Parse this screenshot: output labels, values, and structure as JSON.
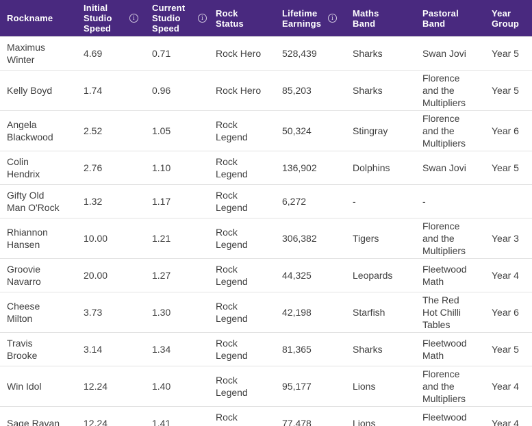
{
  "theme": {
    "header_bg": "#49297F",
    "header_text": "#FFFFFF",
    "row_text": "#3E3E3E",
    "divider": "#E2E2E2"
  },
  "table": {
    "columns": [
      {
        "key": "rockname",
        "label": "Rockname",
        "info": false
      },
      {
        "key": "initial-studio-speed",
        "label": "Initial Studio Speed",
        "info": true
      },
      {
        "key": "current-studio-speed",
        "label": "Current Studio Speed",
        "info": true
      },
      {
        "key": "rock-status",
        "label": "Rock Status",
        "info": false
      },
      {
        "key": "lifetime-earnings",
        "label": "Lifetime Earnings",
        "info": true
      },
      {
        "key": "maths-band",
        "label": "Maths Band",
        "info": false
      },
      {
        "key": "pastoral-band",
        "label": "Pastoral Band",
        "info": false
      },
      {
        "key": "year-group",
        "label": "Year Group",
        "info": false
      }
    ],
    "rows": [
      [
        "Maximus Winter",
        "4.69",
        "0.71",
        "Rock Hero",
        "528,439",
        "Sharks",
        "Swan Jovi",
        "Year 5"
      ],
      [
        "Kelly Boyd",
        "1.74",
        "0.96",
        "Rock Hero",
        "85,203",
        "Sharks",
        "Florence and the Multipliers",
        "Year 5"
      ],
      [
        "Angela Blackwood",
        "2.52",
        "1.05",
        "Rock Legend",
        "50,324",
        "Stingray",
        "Florence and the Multipliers",
        "Year 6"
      ],
      [
        "Colin Hendrix",
        "2.76",
        "1.10",
        "Rock Legend",
        "136,902",
        "Dolphins",
        "Swan Jovi",
        "Year 5"
      ],
      [
        "Gifty Old Man O'Rock",
        "1.32",
        "1.17",
        "Rock Legend",
        "6,272",
        "-",
        "-",
        ""
      ],
      [
        "Rhiannon Hansen",
        "10.00",
        "1.21",
        "Rock Legend",
        "306,382",
        "Tigers",
        "Florence and the Multipliers",
        "Year 3"
      ],
      [
        "Groovie Navarro",
        "20.00",
        "1.27",
        "Rock Legend",
        "44,325",
        "Leopards",
        "Fleetwood Math",
        "Year 4"
      ],
      [
        "Cheese Milton",
        "3.73",
        "1.30",
        "Rock Legend",
        "42,198",
        "Starfish",
        "The Red Hot Chilli Tables",
        "Year 6"
      ],
      [
        "Travis Brooke",
        "3.14",
        "1.34",
        "Rock Legend",
        "81,365",
        "Sharks",
        "Fleetwood Math",
        "Year 5"
      ],
      [
        "Win Idol",
        "12.24",
        "1.40",
        "Rock Legend",
        "95,177",
        "Lions",
        "Florence and the Multipliers",
        "Year 4"
      ],
      [
        "Sage Ravan",
        "12.24",
        "1.41",
        "Rock Legend",
        "77,478",
        "Lions",
        "Fleetwood Math",
        "Year 4"
      ]
    ]
  }
}
